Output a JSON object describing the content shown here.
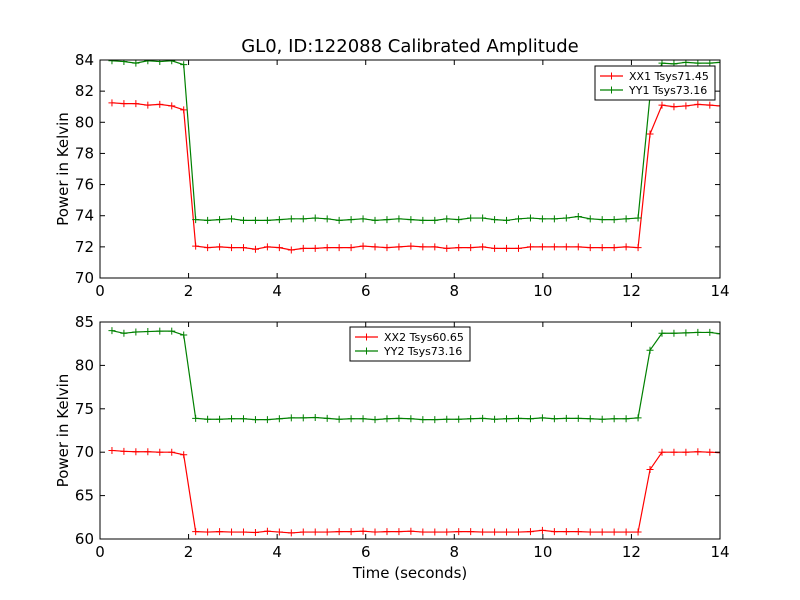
{
  "chart_data": {
    "title": "GL0, ID:122088 Calibrated Amplitude",
    "xlabel": "Time (seconds)",
    "x": [
      0.27,
      0.54,
      0.81,
      1.08,
      1.35,
      1.62,
      1.89,
      2.16,
      2.43,
      2.7,
      2.97,
      3.24,
      3.51,
      3.78,
      4.05,
      4.32,
      4.59,
      4.86,
      5.13,
      5.4,
      5.67,
      5.94,
      6.21,
      6.48,
      6.75,
      7.02,
      7.29,
      7.56,
      7.83,
      8.1,
      8.37,
      8.64,
      8.91,
      9.18,
      9.45,
      9.72,
      9.99,
      10.26,
      10.53,
      10.8,
      11.07,
      11.34,
      11.61,
      11.88,
      12.15,
      12.42,
      12.69,
      12.96,
      13.23,
      13.5,
      13.77,
      14.0
    ],
    "panels": [
      {
        "type": "line",
        "ylabel": "Power in Kelvin",
        "xlim": [
          0,
          14
        ],
        "ylim": [
          70,
          84
        ],
        "xticks": [
          "0",
          "2",
          "4",
          "6",
          "8",
          "10",
          "12",
          "14"
        ],
        "yticks": [
          "70",
          "72",
          "74",
          "76",
          "78",
          "80",
          "82",
          "84"
        ],
        "legend_position": "top-right",
        "series": [
          {
            "name": "XX1 Tsys71.45",
            "color": "#ff0000",
            "values": [
              81.25,
              81.2,
              81.2,
              81.1,
              81.15,
              81.05,
              80.8,
              72.05,
              71.95,
              72.0,
              71.95,
              71.95,
              71.85,
              72.0,
              71.95,
              71.8,
              71.9,
              71.9,
              71.95,
              71.95,
              71.95,
              72.05,
              72.0,
              71.95,
              72.0,
              72.05,
              72.0,
              72.0,
              71.9,
              71.95,
              71.95,
              72.0,
              71.9,
              71.9,
              71.9,
              72.0,
              72.0,
              72.0,
              72.0,
              72.0,
              71.95,
              71.95,
              71.95,
              72.0,
              71.95,
              79.25,
              81.1,
              81.0,
              81.05,
              81.15,
              81.1,
              81.05
            ]
          },
          {
            "name": "YY1 Tsys73.16",
            "color": "#008000",
            "values": [
              83.95,
              83.9,
              83.8,
              83.95,
              83.9,
              83.95,
              83.7,
              73.75,
              73.7,
              73.75,
              73.8,
              73.7,
              73.7,
              73.7,
              73.75,
              73.8,
              73.8,
              73.85,
              73.8,
              73.7,
              73.75,
              73.8,
              73.7,
              73.75,
              73.8,
              73.75,
              73.7,
              73.7,
              73.8,
              73.75,
              73.85,
              73.85,
              73.75,
              73.7,
              73.8,
              73.85,
              73.8,
              73.8,
              73.85,
              73.95,
              73.8,
              73.75,
              73.75,
              73.8,
              73.85,
              81.7,
              83.8,
              83.75,
              83.85,
              83.8,
              83.8,
              83.85
            ]
          }
        ]
      },
      {
        "type": "line",
        "ylabel": "Power in Kelvin",
        "xlabel": "Time (seconds)",
        "xlim": [
          0,
          14
        ],
        "ylim": [
          60,
          85
        ],
        "xticks": [
          "0",
          "2",
          "4",
          "6",
          "8",
          "10",
          "12",
          "14"
        ],
        "yticks": [
          "60",
          "65",
          "70",
          "75",
          "80",
          "85"
        ],
        "legend_position": "top-center",
        "series": [
          {
            "name": "XX2 Tsys60.65",
            "color": "#ff0000",
            "values": [
              70.2,
              70.1,
              70.05,
              70.05,
              70.0,
              70.0,
              69.7,
              60.85,
              60.8,
              60.85,
              60.8,
              60.8,
              60.75,
              60.9,
              60.8,
              60.7,
              60.8,
              60.8,
              60.8,
              60.85,
              60.85,
              60.9,
              60.8,
              60.85,
              60.85,
              60.9,
              60.8,
              60.8,
              60.8,
              60.85,
              60.85,
              60.8,
              60.8,
              60.8,
              60.8,
              60.85,
              61.0,
              60.85,
              60.85,
              60.85,
              60.8,
              60.8,
              60.8,
              60.8,
              60.8,
              68.0,
              70.0,
              70.0,
              70.0,
              70.05,
              70.0,
              69.95
            ]
          },
          {
            "name": "YY2 Tsys73.16",
            "color": "#008000",
            "values": [
              84.0,
              83.7,
              83.85,
              83.9,
              83.95,
              83.95,
              83.5,
              73.9,
              73.8,
              73.8,
              73.85,
              73.85,
              73.75,
              73.75,
              73.85,
              73.95,
              73.95,
              74.0,
              73.9,
              73.8,
              73.85,
              73.85,
              73.75,
              73.85,
              73.9,
              73.85,
              73.75,
              73.75,
              73.8,
              73.8,
              73.85,
              73.9,
              73.8,
              73.85,
              73.9,
              73.85,
              73.95,
              73.85,
              73.9,
              73.9,
              73.85,
              73.8,
              73.85,
              73.85,
              73.95,
              81.75,
              83.7,
              83.7,
              83.75,
              83.8,
              83.8,
              83.65
            ]
          }
        ]
      }
    ]
  }
}
